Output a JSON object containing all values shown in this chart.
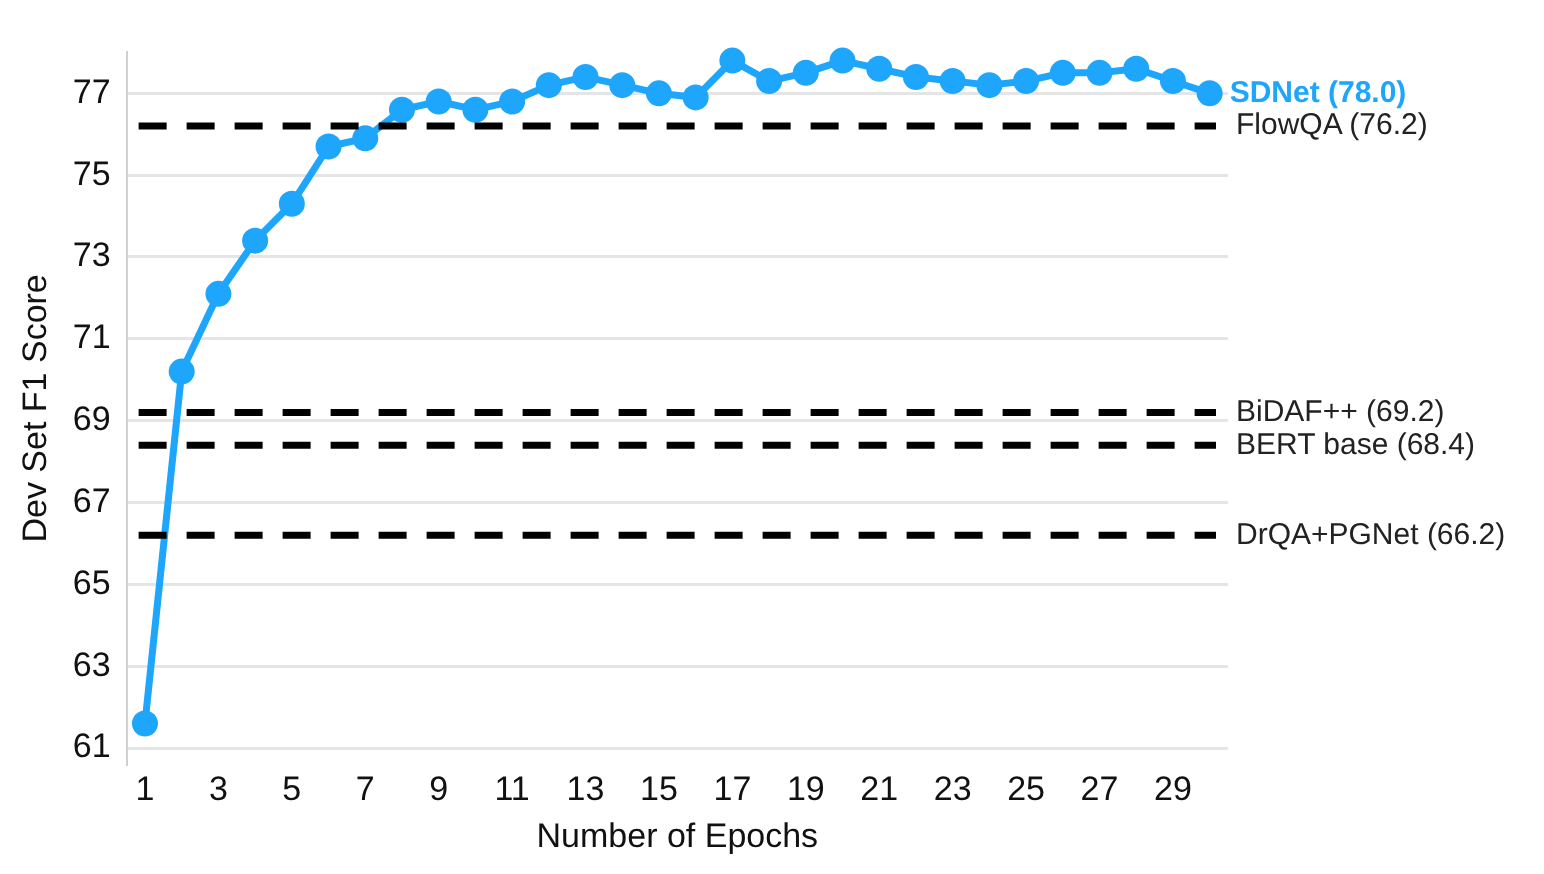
{
  "chart_data": {
    "type": "line",
    "xlabel": "Number of Epochs",
    "ylabel": "Dev Set F1 Score",
    "x": [
      1,
      2,
      3,
      4,
      5,
      6,
      7,
      8,
      9,
      10,
      11,
      12,
      13,
      14,
      15,
      16,
      17,
      18,
      19,
      20,
      21,
      22,
      23,
      24,
      25,
      26,
      27,
      28,
      29,
      30
    ],
    "series": [
      {
        "name": "SDNet (78.0)",
        "color": "#1ea5fc",
        "values": [
          61.6,
          70.2,
          72.1,
          73.4,
          74.3,
          75.7,
          75.9,
          76.6,
          76.8,
          76.6,
          76.8,
          77.2,
          77.4,
          77.2,
          77.0,
          76.9,
          77.8,
          77.3,
          77.5,
          77.8,
          77.6,
          77.4,
          77.3,
          77.2,
          77.3,
          77.5,
          77.5,
          77.6,
          77.3,
          77.0
        ]
      }
    ],
    "ref_lines": [
      {
        "axis": "y",
        "value": 76.2,
        "label": "FlowQA (76.2)",
        "color": "#000000",
        "line_style": "dashed"
      },
      {
        "axis": "y",
        "value": 69.2,
        "label": "BiDAF++ (69.2)",
        "color": "#000000",
        "line_style": "dashed"
      },
      {
        "axis": "y",
        "value": 68.4,
        "label": "BERT base (68.4)",
        "color": "#000000",
        "line_style": "dashed"
      },
      {
        "axis": "y",
        "value": 66.2,
        "label": "DrQA+PGNet (66.2)",
        "color": "#000000",
        "line_style": "dashed"
      }
    ],
    "xlim": [
      0.5,
      30.5
    ],
    "xticks": [
      1,
      3,
      5,
      7,
      9,
      11,
      13,
      15,
      17,
      19,
      21,
      23,
      25,
      27,
      29
    ],
    "ylim": [
      60.6,
      78.0
    ],
    "yticks": [
      61,
      63,
      65,
      67,
      69,
      71,
      73,
      75,
      77
    ],
    "grid": "y",
    "legend": false,
    "marker": "circle",
    "line_style": "solid"
  }
}
